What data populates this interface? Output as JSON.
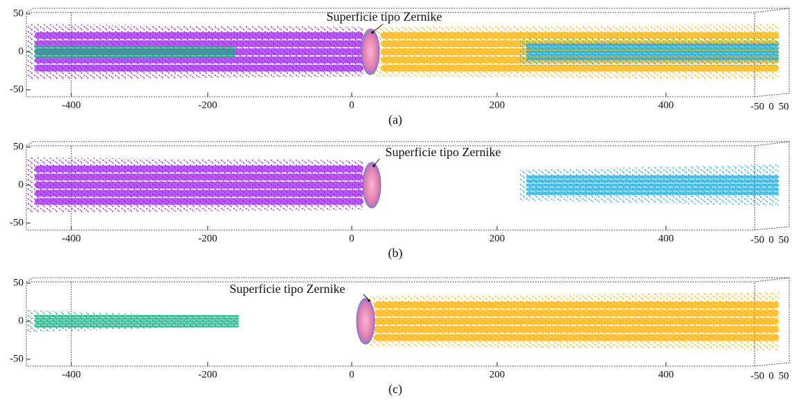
{
  "panels": [
    {
      "caption": "(a)",
      "annotation": "Superficie tipo Zernike",
      "y_ticks": [
        "50",
        "0",
        "-50"
      ],
      "x_ticks": [
        "-400",
        "-200",
        "0",
        "200",
        "400"
      ],
      "depth_ticks": [
        "-50",
        "0",
        "50"
      ]
    },
    {
      "caption": "(b)",
      "annotation": "Superficie tipo Zernike",
      "y_ticks": [
        "50",
        "0",
        "-50"
      ],
      "x_ticks": [
        "-400",
        "-200",
        "0",
        "200",
        "400"
      ],
      "depth_ticks": [
        "-50",
        "0",
        "50"
      ]
    },
    {
      "caption": "(c)",
      "annotation": "Superficie tipo Zernike",
      "y_ticks": [
        "50",
        "0",
        "-50"
      ],
      "x_ticks": [
        "-400",
        "-200",
        "0",
        "200",
        "400"
      ],
      "depth_ticks": [
        "-50",
        "0",
        "50"
      ]
    }
  ]
}
